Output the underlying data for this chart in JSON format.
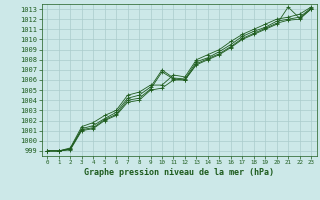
{
  "title": "Graphe pression niveau de la mer (hPa)",
  "background_color": "#cce8e8",
  "grid_color": "#aacccc",
  "line_color": "#1e5c1e",
  "xlim": [
    -0.5,
    23.5
  ],
  "ylim": [
    998.5,
    1013.5
  ],
  "yticks": [
    999,
    1000,
    1001,
    1002,
    1003,
    1004,
    1005,
    1006,
    1007,
    1008,
    1009,
    1010,
    1011,
    1012,
    1013
  ],
  "xticks": [
    0,
    1,
    2,
    3,
    4,
    5,
    6,
    7,
    8,
    9,
    10,
    11,
    12,
    13,
    14,
    15,
    16,
    17,
    18,
    19,
    20,
    21,
    22,
    23
  ],
  "series": [
    [
      999.0,
      999.0,
      999.1,
      1001.0,
      1001.2,
      1002.0,
      1002.5,
      1003.8,
      1004.0,
      1005.0,
      1005.2,
      1006.0,
      1006.0,
      1007.5,
      1008.0,
      1008.5,
      1009.2,
      1010.0,
      1010.5,
      1011.0,
      1011.5,
      1013.2,
      1012.1,
      1013.0
    ],
    [
      999.0,
      999.0,
      999.2,
      1001.2,
      1001.5,
      1002.2,
      1002.8,
      1004.2,
      1004.5,
      1005.3,
      1007.0,
      1006.2,
      1006.1,
      1007.8,
      1008.2,
      1008.8,
      1009.5,
      1010.3,
      1010.8,
      1011.2,
      1011.8,
      1012.0,
      1012.2,
      1013.1
    ],
    [
      999.0,
      999.0,
      999.3,
      1001.4,
      1001.8,
      1002.5,
      1003.0,
      1004.5,
      1004.8,
      1005.5,
      1005.5,
      1006.5,
      1006.3,
      1008.0,
      1008.5,
      1009.0,
      1009.8,
      1010.5,
      1011.0,
      1011.5,
      1012.0,
      1012.2,
      1012.5,
      1013.2
    ],
    [
      999.0,
      999.0,
      999.2,
      1001.1,
      1001.3,
      1002.1,
      1002.6,
      1004.0,
      1004.2,
      1005.1,
      1006.8,
      1006.1,
      1006.0,
      1007.6,
      1008.1,
      1008.6,
      1009.3,
      1010.1,
      1010.6,
      1011.1,
      1011.6,
      1011.9,
      1012.0,
      1013.0
    ]
  ],
  "xlabel_fontsize": 6,
  "ytick_fontsize": 5,
  "xtick_fontsize": 4.2
}
